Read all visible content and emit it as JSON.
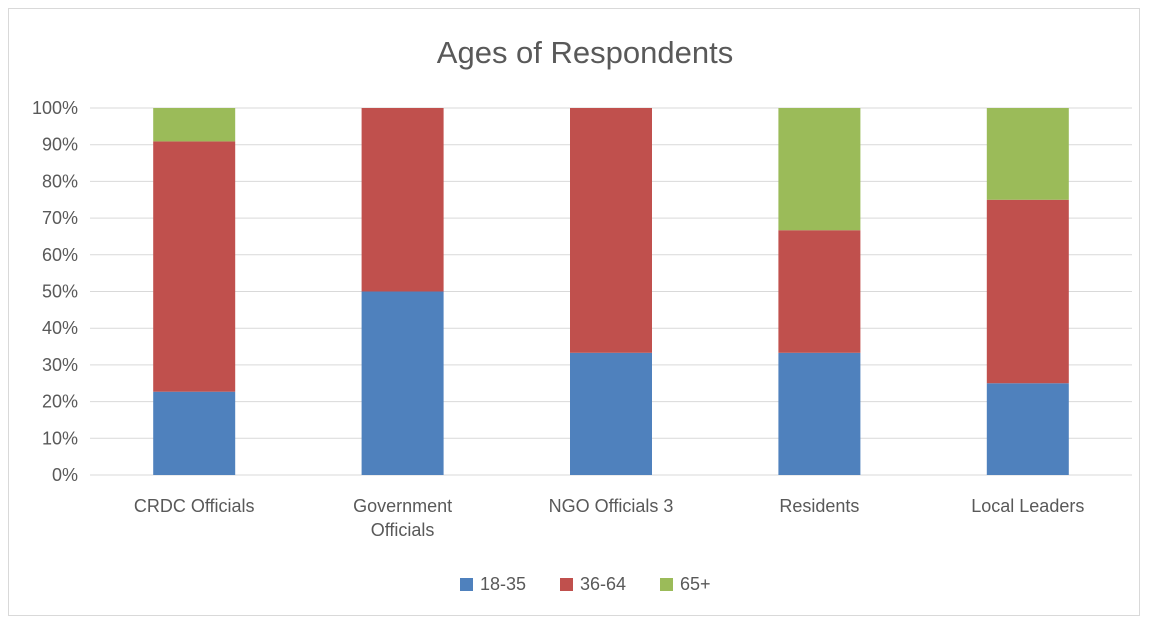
{
  "chart_data": {
    "type": "bar",
    "stacked": true,
    "normalized": true,
    "title": "Ages of Respondents",
    "xlabel": "",
    "ylabel": "",
    "categories": [
      [
        "CRDC Officials"
      ],
      [
        "Government",
        "Officials"
      ],
      [
        "NGO Officials 3"
      ],
      [
        "Residents"
      ],
      [
        "Local Leaders"
      ]
    ],
    "series": [
      {
        "name": "18-35",
        "color": "#4f81bd",
        "values": [
          0.227,
          0.5,
          0.333,
          0.333,
          0.25
        ]
      },
      {
        "name": "36-64",
        "color": "#c0504d",
        "values": [
          0.682,
          0.5,
          0.667,
          0.334,
          0.5
        ]
      },
      {
        "name": "65+",
        "color": "#9bbb59",
        "values": [
          0.091,
          0.0,
          0.0,
          0.333,
          0.25
        ]
      }
    ],
    "ylim": [
      0,
      1
    ],
    "yticks": [
      "0%",
      "10%",
      "20%",
      "30%",
      "40%",
      "50%",
      "60%",
      "70%",
      "80%",
      "90%",
      "100%"
    ],
    "grid": true,
    "legend_position": "bottom"
  }
}
